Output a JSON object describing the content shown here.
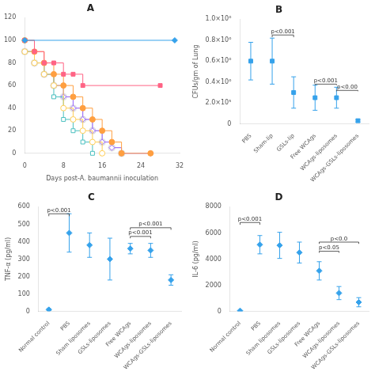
{
  "chart_data": [
    {
      "type": "line",
      "title": "A",
      "xlabel": "Days post-A. baumannii inoculation",
      "xlim": [
        0,
        32
      ],
      "ylim": [
        0,
        120
      ],
      "xticks": [
        0,
        8,
        16,
        24,
        32
      ],
      "yticks": [
        0,
        20,
        40,
        60,
        80,
        100,
        120
      ],
      "line_style": "steps",
      "grid": false,
      "series": [
        {
          "x": [
            0,
            31
          ],
          "values": [
            100,
            100
          ],
          "marker": "filled_diamond"
        },
        {
          "x": [
            0,
            2,
            4,
            6,
            8,
            10,
            12,
            28
          ],
          "values": [
            100,
            90,
            80,
            80,
            70,
            70,
            60,
            60
          ],
          "marker": "filled_square"
        },
        {
          "x": [
            0,
            2,
            4,
            6,
            8,
            10,
            12,
            14,
            16,
            18,
            20,
            26
          ],
          "values": [
            100,
            90,
            80,
            70,
            60,
            50,
            40,
            30,
            20,
            10,
            0,
            0
          ],
          "marker": "filled_circle"
        },
        {
          "x": [
            0,
            2,
            4,
            6,
            8,
            10,
            12,
            14,
            16
          ],
          "values": [
            90,
            80,
            70,
            60,
            40,
            30,
            20,
            10,
            0
          ],
          "marker": "open_circle"
        },
        {
          "x": [
            0,
            2,
            4,
            6,
            8,
            10,
            12,
            14
          ],
          "values": [
            90,
            80,
            70,
            50,
            30,
            20,
            10,
            0
          ],
          "marker": "open_square"
        },
        {
          "x": [
            0,
            2,
            4,
            6,
            8,
            10,
            12,
            14,
            16,
            18,
            20,
            26
          ],
          "values": [
            90,
            80,
            70,
            60,
            50,
            40,
            30,
            20,
            10,
            5,
            0,
            0
          ],
          "marker": "open_diamond"
        },
        {
          "x": [
            0,
            2,
            4,
            6,
            8,
            10,
            12,
            14,
            16,
            18,
            20
          ],
          "values": [
            90,
            80,
            70,
            60,
            50,
            40,
            30,
            20,
            10,
            5,
            0
          ],
          "marker": "crossed_circle"
        }
      ]
    },
    {
      "type": "dot",
      "title": "B",
      "ylabel": "CFUs/gm of Lung",
      "categories": [
        "PBS",
        "Sham-lip",
        "GSLs-lip",
        "Free WCAgs",
        "WCAgs-liposomes",
        "WCAgs-GSLs-liposomes"
      ],
      "values": [
        600000,
        600000,
        300000,
        250000,
        250000,
        30000
      ],
      "errors": [
        180000,
        220000,
        150000,
        120000,
        100000,
        15000
      ],
      "marker": "square",
      "grid": false,
      "ylim": [
        0,
        1000000
      ],
      "yticks": [
        0,
        {
          "value": 200000,
          "label": "2.0×10⁵"
        },
        {
          "value": 400000,
          "label": "0.4×10⁶"
        },
        {
          "value": 600000,
          "label": "0.6×10⁶"
        },
        {
          "value": 800000,
          "label": "0.8×10⁶"
        },
        {
          "value": 1000000,
          "label": "1.0×10⁶"
        }
      ],
      "annotations": [
        {
          "from": "Sham-lip",
          "to": "GSLs-lip",
          "y": 850000,
          "text": "p<0.001"
        },
        {
          "from": "Free WCAgs",
          "to": "WCAgs-liposomes",
          "y": 380000,
          "text": "p<0.001"
        },
        {
          "from": "WCAgs-liposomes",
          "to": "WCAgs-GSLs-liposomes",
          "y": 320000,
          "text": "p<0.00"
        }
      ]
    },
    {
      "type": "dot",
      "title": "C",
      "ylabel": "TNF-α (pg/ml)",
      "categories": [
        "Normal control",
        "PBS",
        "Sham liposomes",
        "GSLs-liposomes",
        "Free WCAgs",
        "WCAgs-liposomes",
        "WCAgs-GSLs-liposomes"
      ],
      "values": [
        10,
        450,
        380,
        300,
        360,
        350,
        180
      ],
      "errors": [
        5,
        110,
        70,
        120,
        30,
        40,
        30
      ],
      "marker": "diamond",
      "grid": false,
      "ylim": [
        0,
        600
      ],
      "yticks": [
        0,
        100,
        200,
        300,
        400,
        500,
        600
      ],
      "annotations": [
        {
          "from": "Normal control",
          "to": "PBS",
          "y": 560,
          "text": "p<0.001"
        },
        {
          "from": "Free WCAgs",
          "to": "WCAgs-liposomes",
          "y": 430,
          "text": "p<0.001"
        },
        {
          "from": "Free WCAgs",
          "to": "WCAgs-GSLs-liposomes",
          "y": 480,
          "text": "p<0.001"
        }
      ]
    },
    {
      "type": "dot",
      "title": "D",
      "ylabel": "IL-6 (pg/ml)",
      "categories": [
        "Normal control",
        "PBS",
        "Sham liposomes",
        "GSLs-liposomes",
        "Free WCAgs",
        "WCAgs-liposomes",
        "WCAgs-GSLs-liposomes"
      ],
      "values": [
        50,
        5100,
        5050,
        4500,
        3100,
        1400,
        700
      ],
      "errors": [
        20,
        700,
        1000,
        800,
        700,
        500,
        350
      ],
      "marker": "diamond",
      "grid": false,
      "ylim": [
        0,
        8000
      ],
      "yticks": [
        0,
        2000,
        4000,
        6000,
        8000
      ],
      "annotations": [
        {
          "from": "Normal control",
          "to": "PBS",
          "y": 6800,
          "text": "p<0.001"
        },
        {
          "from": "Free WCAgs",
          "to": "WCAgs-liposomes",
          "y": 4600,
          "text": "p<0.05"
        },
        {
          "from": "Free WCAgs",
          "to": "WCAgs-GSLs-liposomes",
          "y": 5300,
          "text": "p<0.0"
        }
      ]
    }
  ]
}
